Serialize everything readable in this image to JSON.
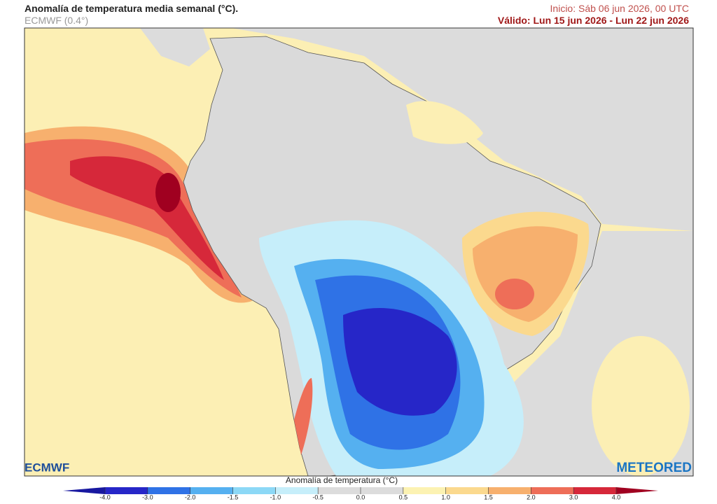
{
  "header": {
    "title": "Anomalía de temperatura media semanal (°C).",
    "model": "ECMWF (0.4°)",
    "init": "Inicio: Sáb 06 jun 2026, 00 UTC",
    "valid": "Válido: Lun 15 jun 2026 - Lun 22 jun 2026"
  },
  "legend": {
    "title": "Anomalía de temperatura (°C)",
    "ticks": [
      {
        "value": -4,
        "label": "-4.0"
      },
      {
        "value": -3,
        "label": "-3.0"
      },
      {
        "value": -2,
        "label": "-2.0"
      },
      {
        "value": -1.5,
        "label": "-1.5"
      },
      {
        "value": -1,
        "label": "-1.0"
      },
      {
        "value": -0.5,
        "label": "-0.5"
      },
      {
        "value": 0,
        "label": "0.0"
      },
      {
        "value": 0.5,
        "label": "0.5"
      },
      {
        "value": 1,
        "label": "1.0"
      },
      {
        "value": 1.5,
        "label": "1.5"
      },
      {
        "value": 2,
        "label": "2.0"
      },
      {
        "value": 3,
        "label": "3.0"
      },
      {
        "value": 4,
        "label": "4.0"
      }
    ],
    "colors": [
      "#2626c8",
      "#2f72e6",
      "#55b0f0",
      "#8cd8f6",
      "#c6eefa",
      "#dcdcdc",
      "#dcdcdc",
      "#fcf2b2",
      "#fbd98e",
      "#f7b06e",
      "#ee6e58",
      "#d6283a"
    ],
    "under_color": "#1818a0",
    "over_color": "#a00020"
  },
  "logos": {
    "left": "ECMWF",
    "right": "METEORED"
  }
}
